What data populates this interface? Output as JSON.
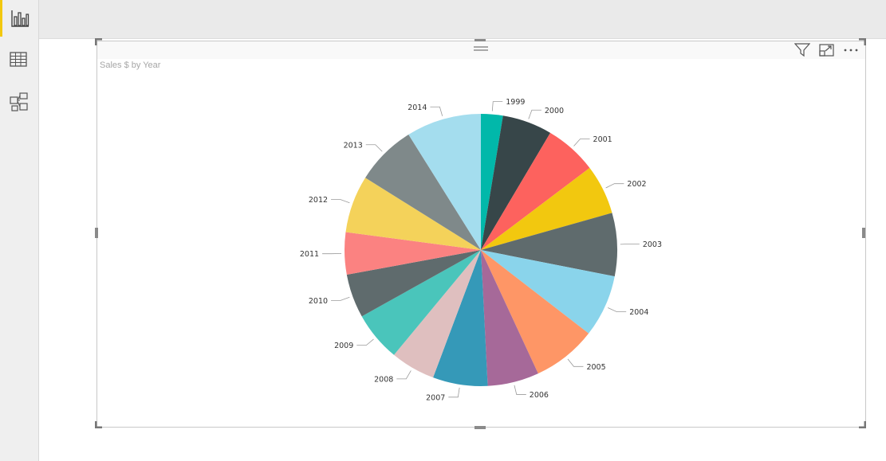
{
  "nav": {
    "items": [
      {
        "name": "report-view",
        "icon": "bar-chart-icon",
        "active": true
      },
      {
        "name": "data-view",
        "icon": "table-icon",
        "active": false
      },
      {
        "name": "relationships-view",
        "icon": "model-icon",
        "active": false
      }
    ]
  },
  "visual": {
    "header_icons": [
      "filter-icon",
      "focus-mode-icon",
      "more-options-icon"
    ],
    "accent": "#f2c80f"
  },
  "chart_data": {
    "type": "pie",
    "title": "Sales $ by Year",
    "legend": "none",
    "slices": [
      {
        "label": "1999",
        "value": 2.6,
        "color": "#01b8aa"
      },
      {
        "label": "2000",
        "value": 5.9,
        "color": "#374649"
      },
      {
        "label": "2001",
        "value": 6.2,
        "color": "#fd625e"
      },
      {
        "label": "2002",
        "value": 5.9,
        "color": "#f2c80f"
      },
      {
        "label": "2003",
        "value": 7.5,
        "color": "#5f6b6d"
      },
      {
        "label": "2004",
        "value": 7.4,
        "color": "#8ad4eb"
      },
      {
        "label": "2005",
        "value": 7.6,
        "color": "#fe9666"
      },
      {
        "label": "2006",
        "value": 6.1,
        "color": "#a66999"
      },
      {
        "label": "2007",
        "value": 6.5,
        "color": "#3599b8"
      },
      {
        "label": "2008",
        "value": 5.3,
        "color": "#dfbfbf"
      },
      {
        "label": "2009",
        "value": 5.9,
        "color": "#4ac5bb"
      },
      {
        "label": "2010",
        "value": 5.2,
        "color": "#5f6b6d"
      },
      {
        "label": "2011",
        "value": 5.0,
        "color": "#fb8281"
      },
      {
        "label": "2012",
        "value": 6.8,
        "color": "#f4d25a"
      },
      {
        "label": "2013",
        "value": 7.2,
        "color": "#7f898a"
      },
      {
        "label": "2014",
        "value": 8.9,
        "color": "#a4ddee"
      }
    ]
  }
}
